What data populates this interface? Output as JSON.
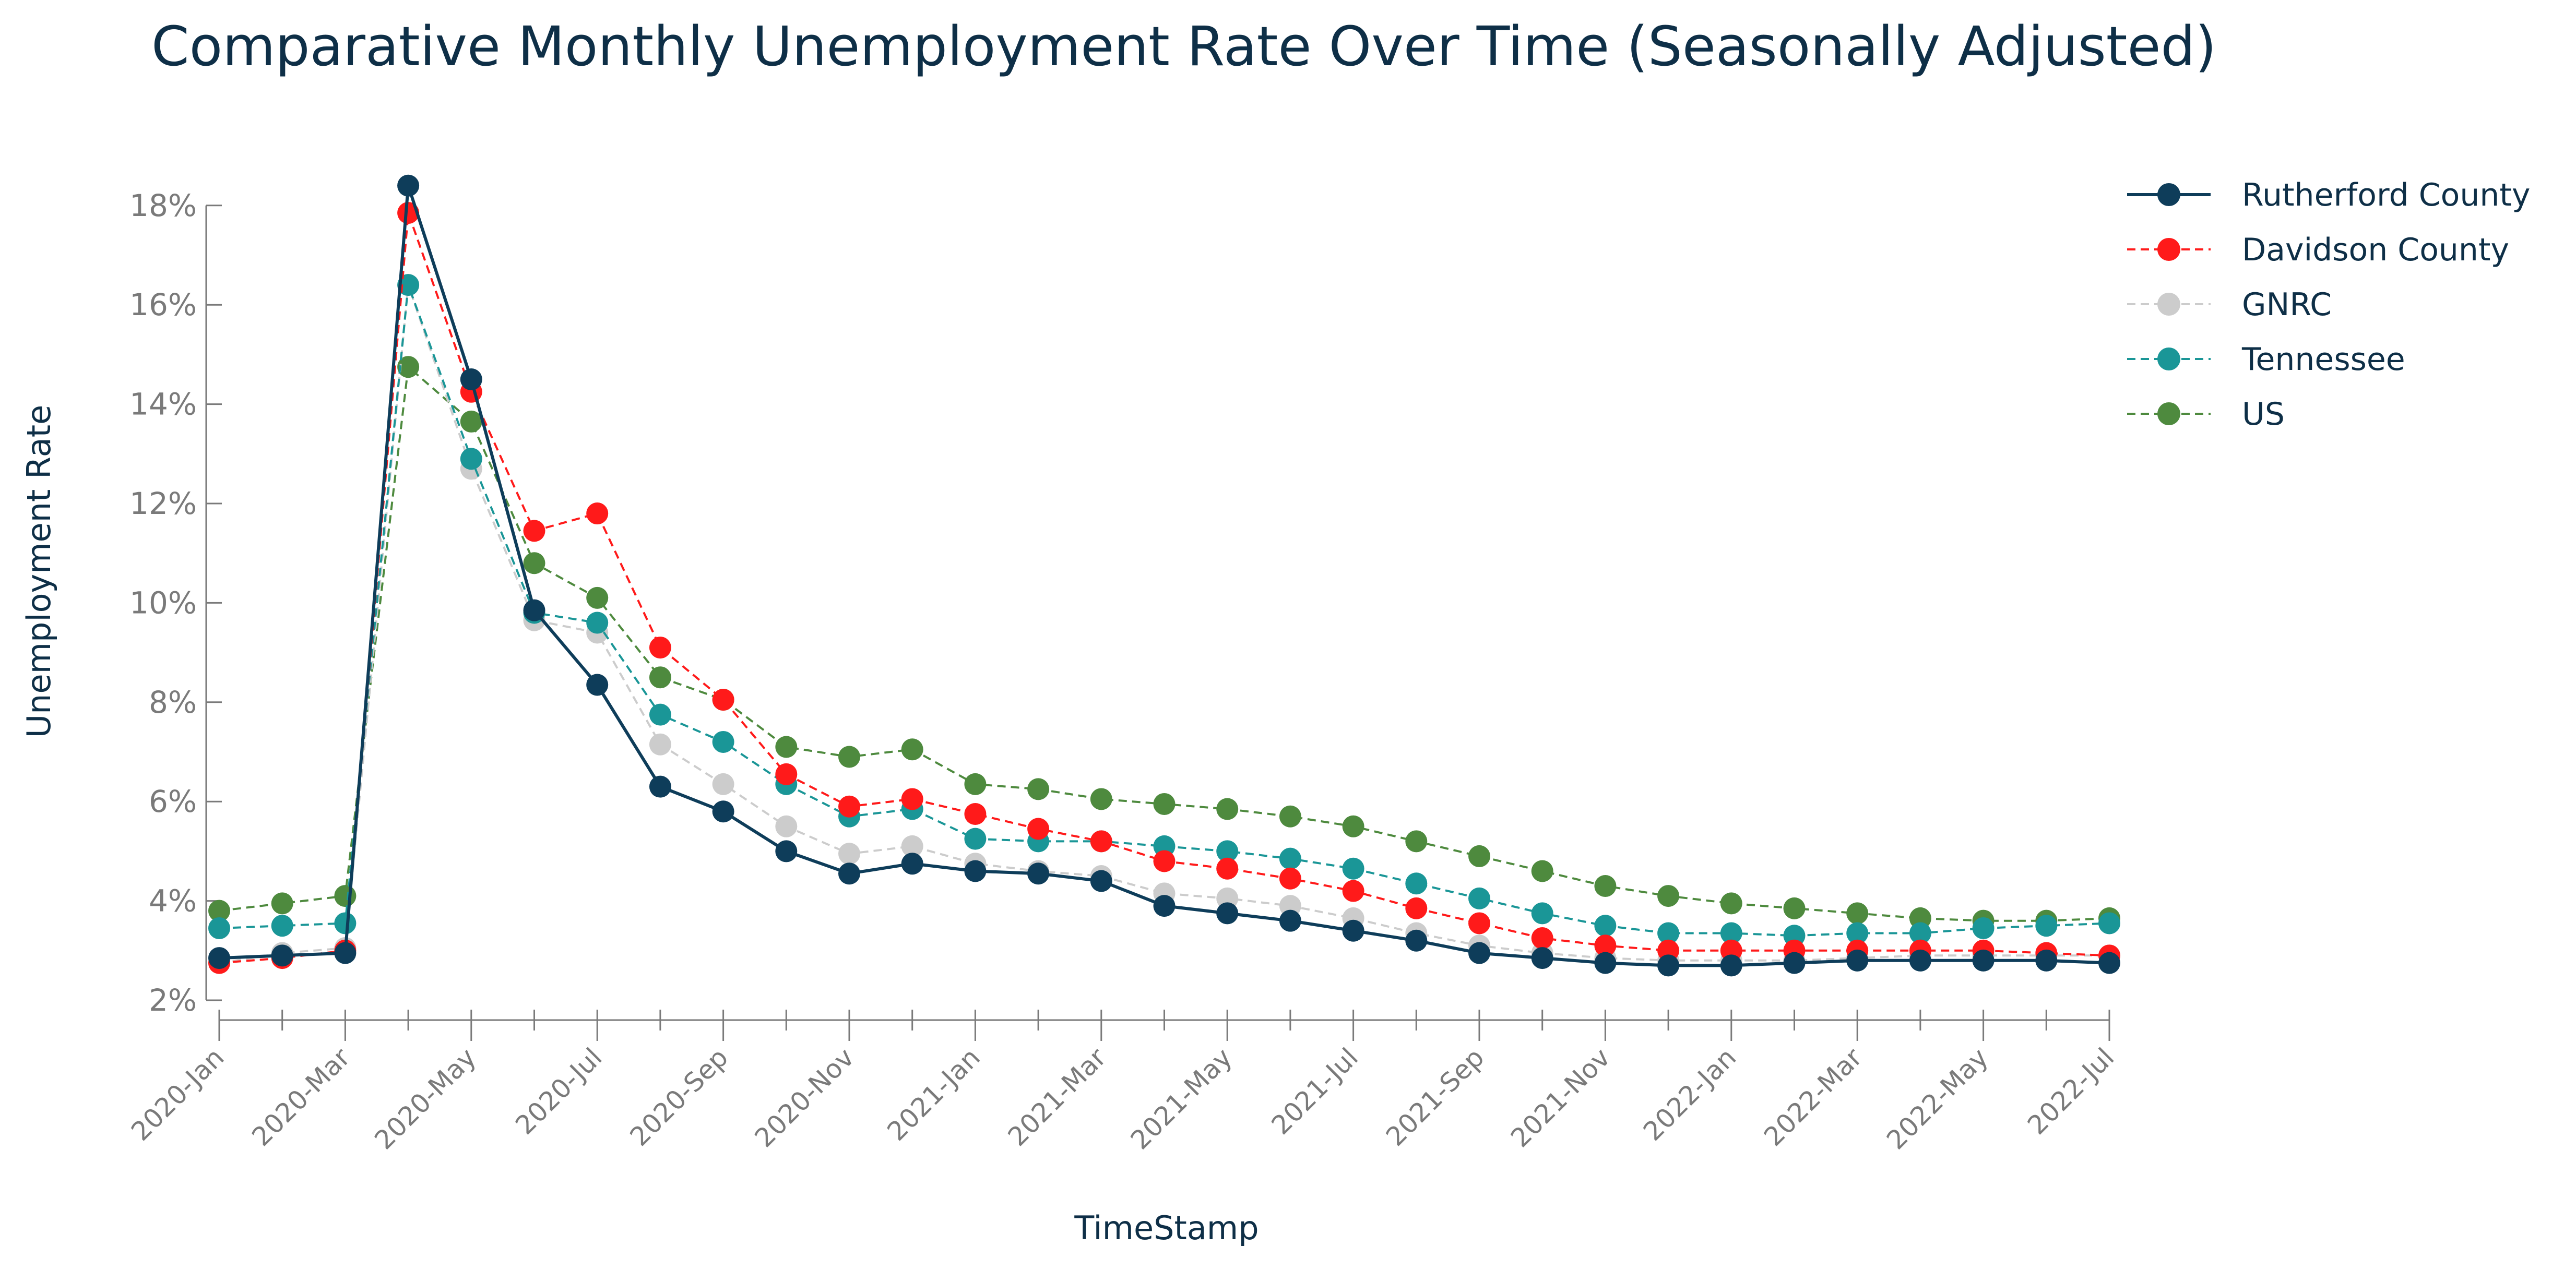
{
  "chart_data": {
    "type": "line",
    "title": "Comparative Monthly Unemployment Rate Over Time (Seasonally Adjusted)",
    "xlabel": "TimeStamp",
    "ylabel": "Unemployment Rate",
    "ylim": [
      2,
      18.6
    ],
    "yticks": [
      "2%",
      "4%",
      "6%",
      "8%",
      "10%",
      "12%",
      "14%",
      "16%",
      "18%"
    ],
    "ytick_values": [
      2,
      4,
      6,
      8,
      10,
      12,
      14,
      16,
      18
    ],
    "xtick_labels": [
      "2020-Jan",
      "2020-Mar",
      "2020-May",
      "2020-Jul",
      "2020-Sep",
      "2020-Nov",
      "2021-Jan",
      "2021-Mar",
      "2021-May",
      "2021-Jul",
      "2021-Sep",
      "2021-Nov",
      "2022-Jan",
      "2022-Mar",
      "2022-May",
      "2022-Jul"
    ],
    "x": [
      "2020-Jan",
      "2020-Feb",
      "2020-Mar",
      "2020-Apr",
      "2020-May",
      "2020-Jun",
      "2020-Jul",
      "2020-Aug",
      "2020-Sep",
      "2020-Oct",
      "2020-Nov",
      "2020-Dec",
      "2021-Jan",
      "2021-Feb",
      "2021-Mar",
      "2021-Apr",
      "2021-May",
      "2021-Jun",
      "2021-Jul",
      "2021-Aug",
      "2021-Sep",
      "2021-Oct",
      "2021-Nov",
      "2021-Dec",
      "2022-Jan",
      "2022-Feb",
      "2022-Mar",
      "2022-Apr",
      "2022-May",
      "2022-Jun",
      "2022-Jul"
    ],
    "legend_position": "top-right",
    "grid": false,
    "series": [
      {
        "name": "US",
        "color": "#4e8a3e",
        "dash": "dashed",
        "values": [
          3.8,
          3.95,
          4.1,
          14.75,
          13.65,
          10.8,
          10.1,
          8.5,
          8.05,
          7.1,
          6.9,
          7.05,
          6.35,
          6.25,
          6.05,
          5.95,
          5.85,
          5.7,
          5.5,
          5.2,
          4.9,
          4.6,
          4.3,
          4.1,
          3.95,
          3.85,
          3.75,
          3.65,
          3.6,
          3.6,
          3.65
        ]
      },
      {
        "name": "GNRC",
        "color": "#cccccc",
        "dash": "dashed",
        "values": [
          2.75,
          2.95,
          3.05,
          16.4,
          12.7,
          9.65,
          9.4,
          7.15,
          6.35,
          5.5,
          4.95,
          5.1,
          4.75,
          4.6,
          4.5,
          4.15,
          4.05,
          3.9,
          3.65,
          3.35,
          3.1,
          2.95,
          2.85,
          2.8,
          2.8,
          2.8,
          2.85,
          2.9,
          2.9,
          2.9,
          2.9
        ]
      },
      {
        "name": "Tennessee",
        "color": "#1a9697",
        "dash": "dashed",
        "values": [
          3.45,
          3.5,
          3.55,
          16.4,
          12.9,
          9.8,
          9.6,
          7.75,
          7.2,
          6.35,
          5.7,
          5.85,
          5.25,
          5.2,
          5.2,
          5.1,
          5.0,
          4.85,
          4.65,
          4.35,
          4.05,
          3.75,
          3.5,
          3.35,
          3.35,
          3.3,
          3.35,
          3.35,
          3.45,
          3.5,
          3.55
        ]
      },
      {
        "name": "Davidson County",
        "color": "#ff1a1a",
        "dash": "dashed",
        "values": [
          2.75,
          2.85,
          3.0,
          17.85,
          14.25,
          11.45,
          11.8,
          9.1,
          8.05,
          6.55,
          5.9,
          6.05,
          5.75,
          5.45,
          5.2,
          4.8,
          4.65,
          4.45,
          4.2,
          3.85,
          3.55,
          3.25,
          3.1,
          3.0,
          3.0,
          3.0,
          3.0,
          3.0,
          3.0,
          2.95,
          2.9
        ]
      },
      {
        "name": "Rutherford County",
        "color": "#0e3d5a",
        "dash": "solid",
        "values": [
          2.85,
          2.9,
          2.95,
          18.4,
          14.5,
          9.85,
          8.35,
          6.3,
          5.8,
          5.0,
          4.55,
          4.75,
          4.6,
          4.55,
          4.4,
          3.9,
          3.75,
          3.6,
          3.4,
          3.2,
          2.95,
          2.85,
          2.75,
          2.7,
          2.7,
          2.75,
          2.8,
          2.8,
          2.8,
          2.8,
          2.75
        ]
      }
    ],
    "legend_order": [
      "Rutherford County",
      "Davidson County",
      "GNRC",
      "Tennessee",
      "US"
    ]
  }
}
